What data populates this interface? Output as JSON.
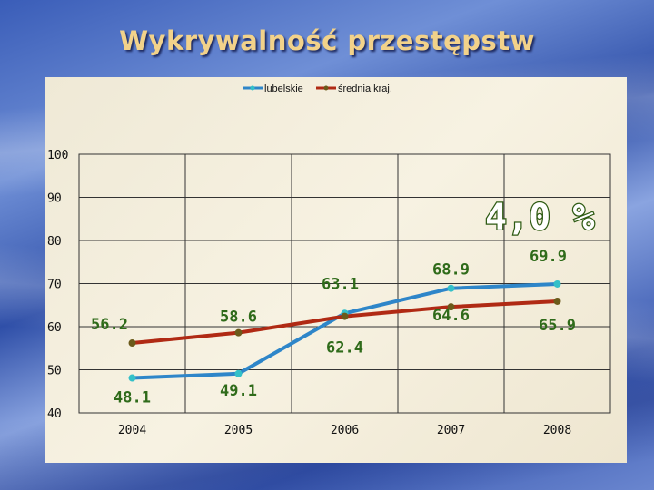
{
  "title": "Wykrywalność  przestępstw",
  "badge": "4,0 %",
  "colors": {
    "lubelskie": "#2e86c9",
    "srednia": "#b02a14",
    "labels": "#2f6b1a"
  },
  "chart_data": {
    "type": "line",
    "title": "Wykrywalność  przestępstw",
    "xlabel": "",
    "ylabel": "",
    "categories": [
      "2004",
      "2005",
      "2006",
      "2007",
      "2008"
    ],
    "ylim": [
      40,
      100
    ],
    "yticks": [
      "40",
      "50",
      "60",
      "70",
      "80",
      "90",
      "100"
    ],
    "grid": true,
    "legend": "top",
    "series": [
      {
        "name": "lubelskie",
        "values": [
          48.1,
          49.1,
          63.1,
          68.9,
          69.9
        ],
        "labels": [
          "48.1",
          "49.1",
          "63.1",
          "68.9",
          "69.9"
        ],
        "color": "#2e86c9"
      },
      {
        "name": "średnia kraj.",
        "values": [
          56.2,
          58.6,
          62.4,
          64.6,
          65.9
        ],
        "labels": [
          "56.2",
          "58.6",
          "62.4",
          "64.6",
          "65.9"
        ],
        "color": "#b02a14"
      }
    ]
  }
}
